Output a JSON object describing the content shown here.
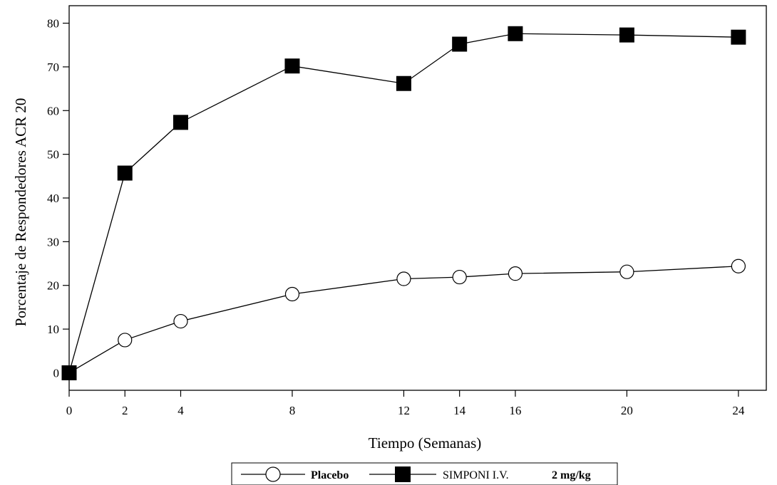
{
  "chart_data": {
    "type": "line",
    "title": "",
    "xlabel": "Tiempo (Semanas)",
    "ylabel": "Porcentaje de Respondedores ACR 20",
    "x": [
      0,
      2,
      4,
      8,
      12,
      14,
      16,
      20,
      24
    ],
    "xticks": [
      "0",
      "2",
      "4",
      "8",
      "12",
      "14",
      "16",
      "20",
      "24"
    ],
    "yticks": [
      "0",
      "10",
      "20",
      "30",
      "40",
      "50",
      "60",
      "70",
      "80"
    ],
    "xlim": [
      0,
      25
    ],
    "ylim": [
      -4,
      84
    ],
    "grid": false,
    "legend_position": "bottom",
    "series": [
      {
        "name": "Placebo",
        "marker": "open-circle",
        "values": [
          0,
          7.5,
          11.8,
          18.0,
          21.5,
          21.9,
          22.7,
          23.1,
          24.4
        ]
      },
      {
        "name": "SIMPONI I.V.",
        "marker": "filled-square",
        "values": [
          0,
          45.7,
          57.3,
          70.2,
          66.2,
          75.2,
          77.6,
          77.3,
          76.8
        ]
      }
    ],
    "legend": {
      "placebo_label": "Placebo",
      "simponi_label_prefix": "SIMPONI I.V.",
      "simponi_label_dose": "2 mg/kg"
    }
  }
}
